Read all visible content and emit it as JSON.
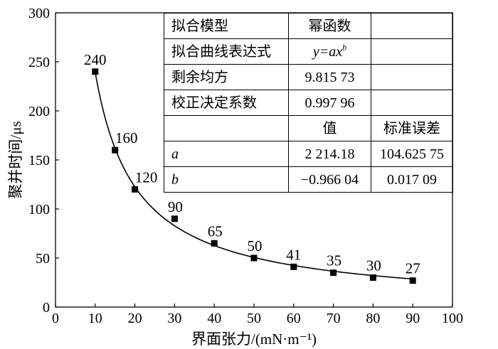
{
  "chart_data": {
    "type": "scatter",
    "xlabel": "界面张力/(mN·m⁻¹)",
    "ylabel": "聚并时间/μs",
    "xlim": [
      0,
      100
    ],
    "ylim": [
      0,
      300
    ],
    "xticks": [
      0,
      10,
      20,
      30,
      40,
      50,
      60,
      70,
      80,
      90,
      100
    ],
    "yticks": [
      0,
      50,
      100,
      150,
      200,
      250,
      300
    ],
    "grid": false,
    "legend": false,
    "series": [
      {
        "x": [
          10,
          15,
          20,
          30,
          40,
          50,
          60,
          70,
          80,
          90
        ],
        "y": [
          240,
          160,
          120,
          90,
          65,
          50,
          41,
          35,
          30,
          27
        ],
        "color": "#000000"
      }
    ],
    "fit": {
      "a": 2214.18,
      "b": -0.96604,
      "color": "#000000"
    },
    "table": {
      "rows": [
        [
          "拟合模型",
          "幂函数",
          ""
        ],
        [
          "拟合曲线表达式",
          {
            "base": "y=ax",
            "sup": "b"
          },
          ""
        ],
        [
          "剩余均方",
          "9.815 73",
          ""
        ],
        [
          "校正决定系数",
          "0.997 96",
          ""
        ],
        [
          "",
          "值",
          "标准误差"
        ],
        [
          "a",
          "2 214.18",
          "104.625 75"
        ],
        [
          "b",
          "−0.966 04",
          "0.017 09"
        ]
      ]
    }
  }
}
